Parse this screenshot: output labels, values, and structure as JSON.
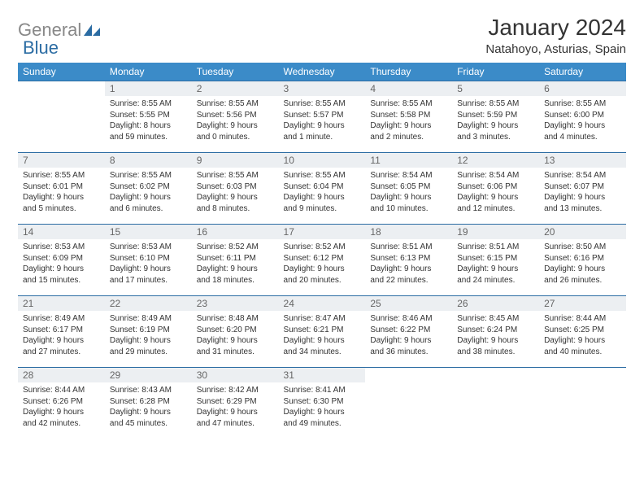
{
  "logo": {
    "gray": "General",
    "blue": "Blue"
  },
  "title": "January 2024",
  "location": "Natahoyo, Asturias, Spain",
  "colors": {
    "header_bg": "#3b8bc8",
    "header_text": "#ffffff",
    "daynum_bg": "#eceff2",
    "daynum_text": "#666666",
    "border": "#2b6ca3",
    "body_text": "#333333",
    "logo_gray": "#888888",
    "logo_blue": "#2b6ca3"
  },
  "fonts": {
    "title_size": 28,
    "location_size": 15,
    "header_size": 12,
    "daynum_size": 12,
    "body_size": 10
  },
  "weekdays": [
    "Sunday",
    "Monday",
    "Tuesday",
    "Wednesday",
    "Thursday",
    "Friday",
    "Saturday"
  ],
  "weeks": [
    [
      {
        "n": "",
        "sr": "",
        "ss": "",
        "dl1": "",
        "dl2": ""
      },
      {
        "n": "1",
        "sr": "Sunrise: 8:55 AM",
        "ss": "Sunset: 5:55 PM",
        "dl1": "Daylight: 8 hours",
        "dl2": "and 59 minutes."
      },
      {
        "n": "2",
        "sr": "Sunrise: 8:55 AM",
        "ss": "Sunset: 5:56 PM",
        "dl1": "Daylight: 9 hours",
        "dl2": "and 0 minutes."
      },
      {
        "n": "3",
        "sr": "Sunrise: 8:55 AM",
        "ss": "Sunset: 5:57 PM",
        "dl1": "Daylight: 9 hours",
        "dl2": "and 1 minute."
      },
      {
        "n": "4",
        "sr": "Sunrise: 8:55 AM",
        "ss": "Sunset: 5:58 PM",
        "dl1": "Daylight: 9 hours",
        "dl2": "and 2 minutes."
      },
      {
        "n": "5",
        "sr": "Sunrise: 8:55 AM",
        "ss": "Sunset: 5:59 PM",
        "dl1": "Daylight: 9 hours",
        "dl2": "and 3 minutes."
      },
      {
        "n": "6",
        "sr": "Sunrise: 8:55 AM",
        "ss": "Sunset: 6:00 PM",
        "dl1": "Daylight: 9 hours",
        "dl2": "and 4 minutes."
      }
    ],
    [
      {
        "n": "7",
        "sr": "Sunrise: 8:55 AM",
        "ss": "Sunset: 6:01 PM",
        "dl1": "Daylight: 9 hours",
        "dl2": "and 5 minutes."
      },
      {
        "n": "8",
        "sr": "Sunrise: 8:55 AM",
        "ss": "Sunset: 6:02 PM",
        "dl1": "Daylight: 9 hours",
        "dl2": "and 6 minutes."
      },
      {
        "n": "9",
        "sr": "Sunrise: 8:55 AM",
        "ss": "Sunset: 6:03 PM",
        "dl1": "Daylight: 9 hours",
        "dl2": "and 8 minutes."
      },
      {
        "n": "10",
        "sr": "Sunrise: 8:55 AM",
        "ss": "Sunset: 6:04 PM",
        "dl1": "Daylight: 9 hours",
        "dl2": "and 9 minutes."
      },
      {
        "n": "11",
        "sr": "Sunrise: 8:54 AM",
        "ss": "Sunset: 6:05 PM",
        "dl1": "Daylight: 9 hours",
        "dl2": "and 10 minutes."
      },
      {
        "n": "12",
        "sr": "Sunrise: 8:54 AM",
        "ss": "Sunset: 6:06 PM",
        "dl1": "Daylight: 9 hours",
        "dl2": "and 12 minutes."
      },
      {
        "n": "13",
        "sr": "Sunrise: 8:54 AM",
        "ss": "Sunset: 6:07 PM",
        "dl1": "Daylight: 9 hours",
        "dl2": "and 13 minutes."
      }
    ],
    [
      {
        "n": "14",
        "sr": "Sunrise: 8:53 AM",
        "ss": "Sunset: 6:09 PM",
        "dl1": "Daylight: 9 hours",
        "dl2": "and 15 minutes."
      },
      {
        "n": "15",
        "sr": "Sunrise: 8:53 AM",
        "ss": "Sunset: 6:10 PM",
        "dl1": "Daylight: 9 hours",
        "dl2": "and 17 minutes."
      },
      {
        "n": "16",
        "sr": "Sunrise: 8:52 AM",
        "ss": "Sunset: 6:11 PM",
        "dl1": "Daylight: 9 hours",
        "dl2": "and 18 minutes."
      },
      {
        "n": "17",
        "sr": "Sunrise: 8:52 AM",
        "ss": "Sunset: 6:12 PM",
        "dl1": "Daylight: 9 hours",
        "dl2": "and 20 minutes."
      },
      {
        "n": "18",
        "sr": "Sunrise: 8:51 AM",
        "ss": "Sunset: 6:13 PM",
        "dl1": "Daylight: 9 hours",
        "dl2": "and 22 minutes."
      },
      {
        "n": "19",
        "sr": "Sunrise: 8:51 AM",
        "ss": "Sunset: 6:15 PM",
        "dl1": "Daylight: 9 hours",
        "dl2": "and 24 minutes."
      },
      {
        "n": "20",
        "sr": "Sunrise: 8:50 AM",
        "ss": "Sunset: 6:16 PM",
        "dl1": "Daylight: 9 hours",
        "dl2": "and 26 minutes."
      }
    ],
    [
      {
        "n": "21",
        "sr": "Sunrise: 8:49 AM",
        "ss": "Sunset: 6:17 PM",
        "dl1": "Daylight: 9 hours",
        "dl2": "and 27 minutes."
      },
      {
        "n": "22",
        "sr": "Sunrise: 8:49 AM",
        "ss": "Sunset: 6:19 PM",
        "dl1": "Daylight: 9 hours",
        "dl2": "and 29 minutes."
      },
      {
        "n": "23",
        "sr": "Sunrise: 8:48 AM",
        "ss": "Sunset: 6:20 PM",
        "dl1": "Daylight: 9 hours",
        "dl2": "and 31 minutes."
      },
      {
        "n": "24",
        "sr": "Sunrise: 8:47 AM",
        "ss": "Sunset: 6:21 PM",
        "dl1": "Daylight: 9 hours",
        "dl2": "and 34 minutes."
      },
      {
        "n": "25",
        "sr": "Sunrise: 8:46 AM",
        "ss": "Sunset: 6:22 PM",
        "dl1": "Daylight: 9 hours",
        "dl2": "and 36 minutes."
      },
      {
        "n": "26",
        "sr": "Sunrise: 8:45 AM",
        "ss": "Sunset: 6:24 PM",
        "dl1": "Daylight: 9 hours",
        "dl2": "and 38 minutes."
      },
      {
        "n": "27",
        "sr": "Sunrise: 8:44 AM",
        "ss": "Sunset: 6:25 PM",
        "dl1": "Daylight: 9 hours",
        "dl2": "and 40 minutes."
      }
    ],
    [
      {
        "n": "28",
        "sr": "Sunrise: 8:44 AM",
        "ss": "Sunset: 6:26 PM",
        "dl1": "Daylight: 9 hours",
        "dl2": "and 42 minutes."
      },
      {
        "n": "29",
        "sr": "Sunrise: 8:43 AM",
        "ss": "Sunset: 6:28 PM",
        "dl1": "Daylight: 9 hours",
        "dl2": "and 45 minutes."
      },
      {
        "n": "30",
        "sr": "Sunrise: 8:42 AM",
        "ss": "Sunset: 6:29 PM",
        "dl1": "Daylight: 9 hours",
        "dl2": "and 47 minutes."
      },
      {
        "n": "31",
        "sr": "Sunrise: 8:41 AM",
        "ss": "Sunset: 6:30 PM",
        "dl1": "Daylight: 9 hours",
        "dl2": "and 49 minutes."
      },
      {
        "n": "",
        "sr": "",
        "ss": "",
        "dl1": "",
        "dl2": ""
      },
      {
        "n": "",
        "sr": "",
        "ss": "",
        "dl1": "",
        "dl2": ""
      },
      {
        "n": "",
        "sr": "",
        "ss": "",
        "dl1": "",
        "dl2": ""
      }
    ]
  ]
}
